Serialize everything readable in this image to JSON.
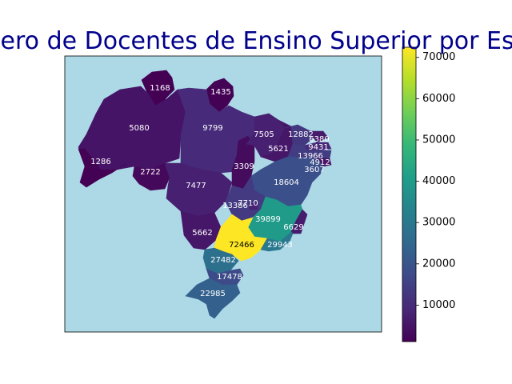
{
  "chart_data": {
    "type": "choropleth",
    "title": "Número de Docentes de Ensino Superior por Estado",
    "colormap": "viridis",
    "background_color": "#add8e6",
    "title_color": "#00008b",
    "grid": false,
    "legend": "colorbar-right",
    "colorbar": {
      "range": [
        1168,
        72466
      ],
      "ticks": [
        10000,
        20000,
        30000,
        40000,
        50000,
        60000,
        70000
      ],
      "tick_labels": [
        "10000",
        "20000",
        "30000",
        "40000",
        "50000",
        "60000",
        "70000"
      ]
    },
    "states": [
      {
        "code": "RR",
        "value": 1168
      },
      {
        "code": "AP",
        "value": 1435
      },
      {
        "code": "AM",
        "value": 5080
      },
      {
        "code": "PA",
        "value": 9799
      },
      {
        "code": "AC",
        "value": 1286
      },
      {
        "code": "RO",
        "value": 2722
      },
      {
        "code": "MT",
        "value": 7477
      },
      {
        "code": "TO",
        "value": 3309
      },
      {
        "code": "MA",
        "value": 7505
      },
      {
        "code": "PI",
        "value": 5621
      },
      {
        "code": "CE",
        "value": 12882
      },
      {
        "code": "RN",
        "value": 6380
      },
      {
        "code": "PB",
        "value": 9431
      },
      {
        "code": "PE",
        "value": 13966
      },
      {
        "code": "AL",
        "value": 4912
      },
      {
        "code": "SE",
        "value": 3607
      },
      {
        "code": "BA",
        "value": 18604
      },
      {
        "code": "GO",
        "value": 13386
      },
      {
        "code": "DF",
        "value": 7710
      },
      {
        "code": "MG",
        "value": 39899
      },
      {
        "code": "ES",
        "value": 6629
      },
      {
        "code": "MS",
        "value": 5662
      },
      {
        "code": "SP",
        "value": 72466
      },
      {
        "code": "RJ",
        "value": 29943
      },
      {
        "code": "PR",
        "value": 27482
      },
      {
        "code": "SC",
        "value": 17478
      },
      {
        "code": "RS",
        "value": 22985
      }
    ]
  }
}
